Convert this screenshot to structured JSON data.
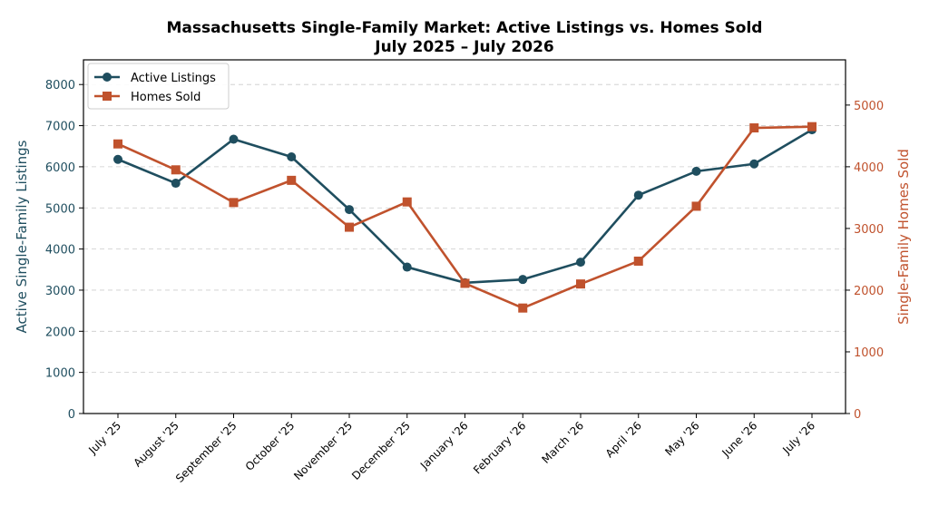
{
  "chart_data": {
    "type": "line",
    "title_line1": "Massachusetts Single-Family Market: Active Listings vs. Homes Sold",
    "title_line2": "July 2025 – July 2026",
    "categories": [
      "July '25",
      "August '25",
      "September '25",
      "October '25",
      "November '25",
      "December '25",
      "January '26",
      "February '26",
      "March '26",
      "April '26",
      "May '26",
      "June '26",
      "July '26"
    ],
    "series": [
      {
        "name": "Active Listings",
        "axis": "left",
        "color": "#1f4e5f",
        "marker": "circle",
        "values": [
          6180,
          5600,
          6670,
          6240,
          4960,
          3560,
          3180,
          3260,
          3680,
          5310,
          5890,
          6070,
          6900
        ]
      },
      {
        "name": "Homes Sold",
        "axis": "right",
        "color": "#c0522d",
        "marker": "square",
        "values": [
          4370,
          3950,
          3420,
          3780,
          3020,
          3430,
          2110,
          1710,
          2100,
          2470,
          3360,
          4630,
          4650
        ]
      }
    ],
    "ylabel_left": "Active Single-Family Listings",
    "ylabel_right": "Single-Family Homes Sold",
    "ylim_left": [
      0,
      8600
    ],
    "ylim_right": [
      0,
      5733
    ],
    "yticks_left": [
      0,
      1000,
      2000,
      3000,
      4000,
      5000,
      6000,
      7000,
      8000
    ],
    "yticks_right": [
      0,
      1000,
      2000,
      3000,
      4000,
      5000
    ],
    "grid": "horizontal dashed",
    "legend_position": "top-left"
  }
}
